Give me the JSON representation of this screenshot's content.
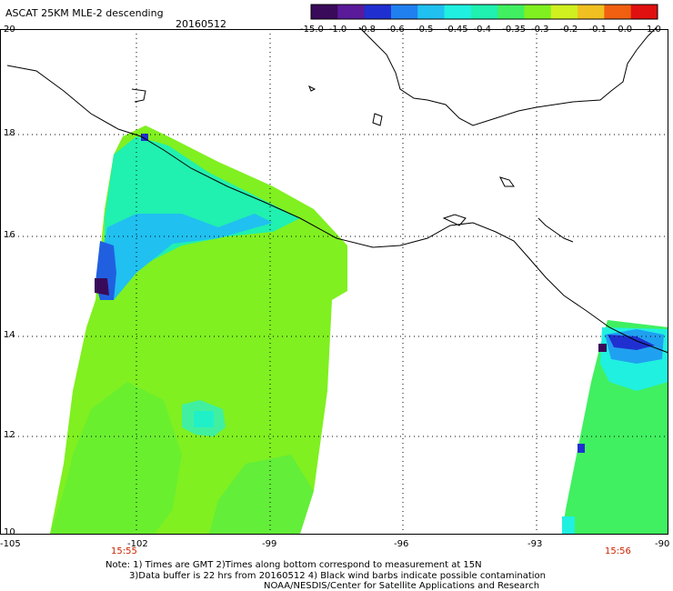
{
  "header": {
    "title": "ASCAT 25KM MLE-2 descending",
    "date": "20160512"
  },
  "colorbar": {
    "labels": [
      "-15.0",
      "-1.0",
      "-0.8",
      "-0.6",
      "-0.5",
      "-0.45",
      "-0.4",
      "-0.35",
      "-0.3",
      "-0.2",
      "-0.1",
      "0.0",
      "1.0"
    ],
    "colors": [
      "#3a0a5a",
      "#5a1a9a",
      "#2030d0",
      "#2080f0",
      "#20c0f0",
      "#20f0e0",
      "#20f0b0",
      "#40f060",
      "#80f020",
      "#d0f020",
      "#f0c020",
      "#f06010",
      "#e01010"
    ]
  },
  "map": {
    "lat_labels": [
      "20",
      "18",
      "16",
      "14",
      "12",
      "10"
    ],
    "lon_labels": [
      "-105",
      "-102",
      "-99",
      "-96",
      "-93",
      "-90"
    ],
    "lat_range": [
      10,
      20
    ],
    "lon_range": [
      -105,
      -90
    ],
    "gridline_style": "dotted",
    "swaths": [
      {
        "name": "west-swath",
        "time": "15:55",
        "dominant_color": "#80f020"
      },
      {
        "name": "east-swath",
        "time": "15:56",
        "dominant_color": "#40f060"
      }
    ]
  },
  "notes": {
    "line1": "Note: 1) Times are GMT 2)Times along bottom correspond to measurement at 15N",
    "line2": "3)Data buffer is 22 hrs from 20160512 4) Black wind barbs indicate possible contamination",
    "line3": "NOAA/NESDIS/Center for Satellite Applications and Research"
  }
}
